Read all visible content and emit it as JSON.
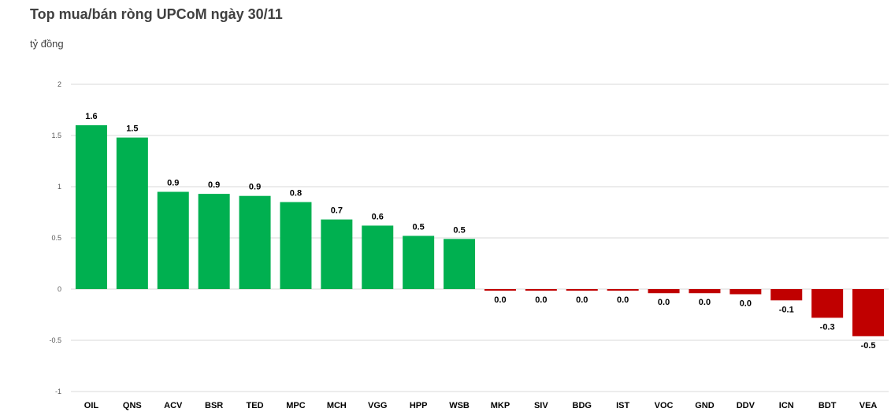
{
  "title": "Top mua/bán ròng UPCoM ngày 30/11",
  "unit_label": "tỷ đồng",
  "colors": {
    "positive": "#00b050",
    "negative": "#c00000",
    "grid": "#d9d9d9"
  },
  "chart_data": {
    "type": "bar",
    "title": "Top mua/bán ròng UPCoM ngày 30/11",
    "ylabel": "tỷ đồng",
    "xlabel": "",
    "ylim": [
      -1,
      2
    ],
    "yticks": [
      -1,
      -0.5,
      0,
      0.5,
      1,
      1.5,
      2
    ],
    "ytick_labels": [
      "-1",
      "-0.5",
      "0",
      "0.5",
      "1",
      "1.5",
      "2"
    ],
    "grid": true,
    "categories": [
      "OIL",
      "QNS",
      "ACV",
      "BSR",
      "TED",
      "MPC",
      "MCH",
      "VGG",
      "HPP",
      "WSB",
      "MKP",
      "SIV",
      "BDG",
      "IST",
      "VOC",
      "GND",
      "DDV",
      "ICN",
      "BDT",
      "VEA"
    ],
    "values": [
      1.6,
      1.48,
      0.95,
      0.93,
      0.91,
      0.85,
      0.68,
      0.62,
      0.52,
      0.49,
      -0.015,
      -0.015,
      -0.015,
      -0.015,
      -0.04,
      -0.04,
      -0.05,
      -0.11,
      -0.28,
      -0.46
    ],
    "data_labels": [
      "1.6",
      "1.5",
      "0.9",
      "0.9",
      "0.9",
      "0.8",
      "0.7",
      "0.6",
      "0.5",
      "0.5",
      "0.0",
      "0.0",
      "0.0",
      "0.0",
      "0.0",
      "0.0",
      "0.0",
      "-0.1",
      "-0.3",
      "-0.5"
    ]
  }
}
